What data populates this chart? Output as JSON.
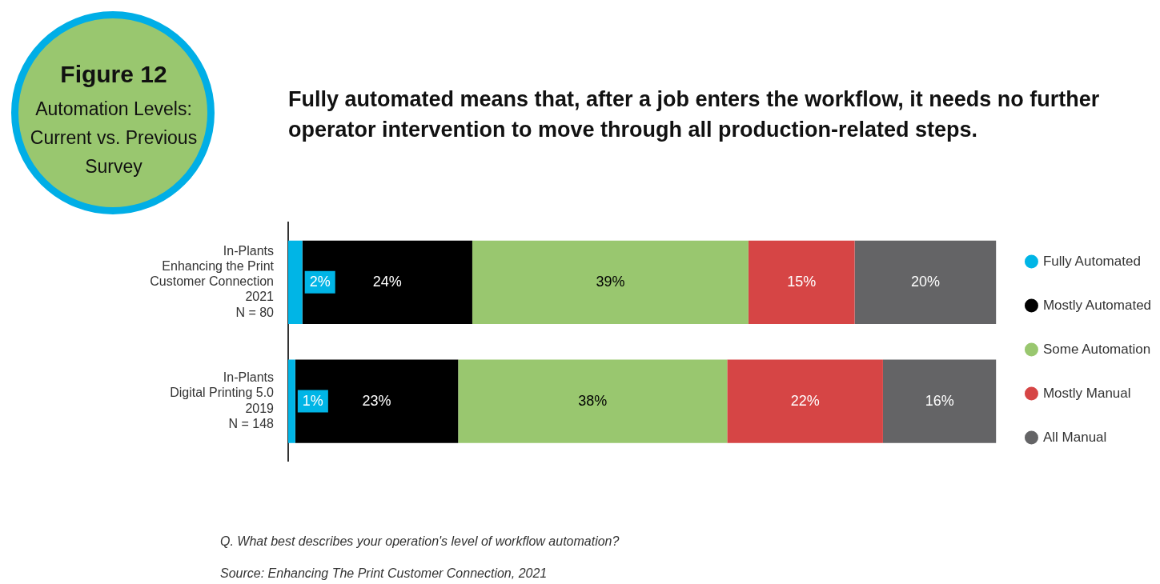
{
  "chart_data": {
    "type": "bar",
    "orientation": "horizontal",
    "stacked": true,
    "grid": false,
    "legend": "right",
    "title": "Figure 12\nAutomation Levels: Current vs. Previous Survey",
    "subtitle": "Fully automated means that, after a job enters the workflow, it needs no further operator intervention to move through all production-related steps.",
    "categories": [
      "In-Plants\nEnhancing the Print\nCustomer Connection\n2021\nN = 80",
      "In-Plants\nDigital Printing 5.0\n2019\nN = 148"
    ],
    "series": [
      {
        "name": "Fully Automated",
        "color": "#00b5e6",
        "values": [
          2,
          1
        ],
        "value_labels": [
          "2%",
          "1%"
        ]
      },
      {
        "name": "Mostly Automated",
        "color": "#000000",
        "values": [
          24,
          23
        ],
        "value_labels": [
          "24%",
          "23%"
        ]
      },
      {
        "name": "Some Automation",
        "color": "#99c76f",
        "values": [
          39,
          38
        ],
        "value_labels": [
          "39%",
          "38%"
        ]
      },
      {
        "name": "Mostly Manual",
        "color": "#d64545",
        "values": [
          15,
          22
        ],
        "value_labels": [
          "15%",
          "22%"
        ]
      },
      {
        "name": "All Manual",
        "color": "#646466",
        "values": [
          20,
          16
        ],
        "value_labels": [
          "20%",
          "16%"
        ]
      }
    ],
    "annotations": [
      "Q. What best describes your operation's level of workflow automation?",
      "Source: Enhancing The Print Customer Connection, 2021"
    ]
  }
}
